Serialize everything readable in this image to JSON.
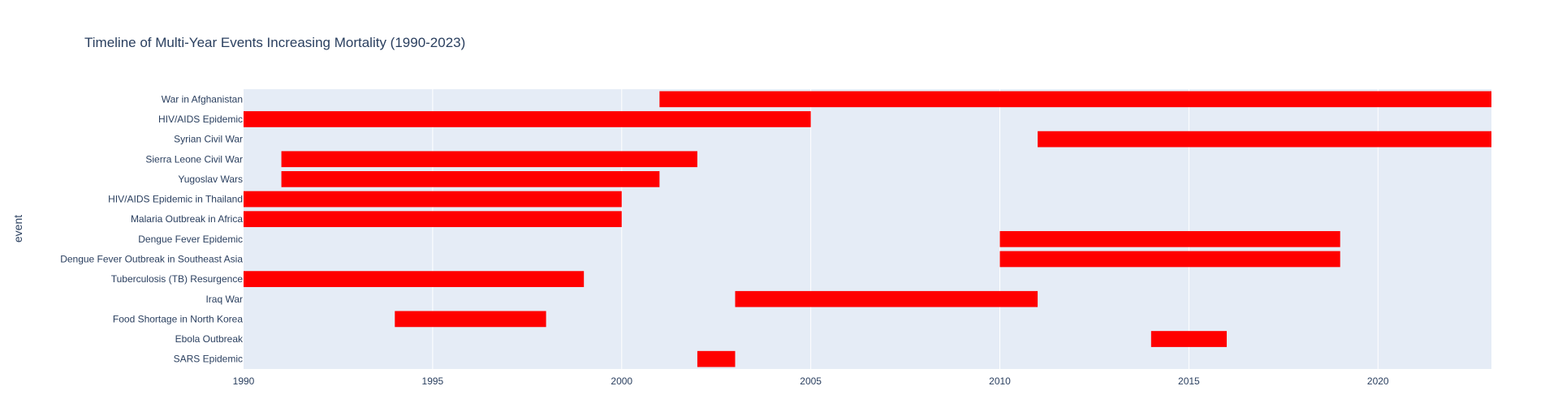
{
  "chart_data": {
    "type": "bar",
    "orientation": "horizontal-timeline",
    "title": "Timeline of Multi-Year Events Increasing Mortality (1990-2023)",
    "xlabel": "",
    "ylabel": "event",
    "xlim": [
      1990,
      2023
    ],
    "xticks": [
      1990,
      1995,
      2000,
      2005,
      2010,
      2015,
      2020
    ],
    "grid": true,
    "bar_color": "#ff0000",
    "plot_bgcolor": "#e5ecf6",
    "events": [
      {
        "name": "War in Afghanistan",
        "start": 2001,
        "end": 2023
      },
      {
        "name": "HIV/AIDS Epidemic",
        "start": 1990,
        "end": 2005
      },
      {
        "name": "Syrian Civil War",
        "start": 2011,
        "end": 2023
      },
      {
        "name": "Sierra Leone Civil War",
        "start": 1991,
        "end": 2002
      },
      {
        "name": "Yugoslav Wars",
        "start": 1991,
        "end": 2001
      },
      {
        "name": "HIV/AIDS Epidemic in Thailand",
        "start": 1990,
        "end": 2000
      },
      {
        "name": "Malaria Outbreak in Africa",
        "start": 1990,
        "end": 2000
      },
      {
        "name": "Dengue Fever Epidemic",
        "start": 2010,
        "end": 2019
      },
      {
        "name": "Dengue Fever Outbreak in Southeast Asia",
        "start": 2010,
        "end": 2019
      },
      {
        "name": "Tuberculosis (TB) Resurgence",
        "start": 1990,
        "end": 1999
      },
      {
        "name": "Iraq War",
        "start": 2003,
        "end": 2011
      },
      {
        "name": "Food Shortage in North Korea",
        "start": 1994,
        "end": 1998
      },
      {
        "name": "Ebola Outbreak",
        "start": 2014,
        "end": 2016
      },
      {
        "name": "SARS Epidemic",
        "start": 2002,
        "end": 2003
      }
    ]
  }
}
